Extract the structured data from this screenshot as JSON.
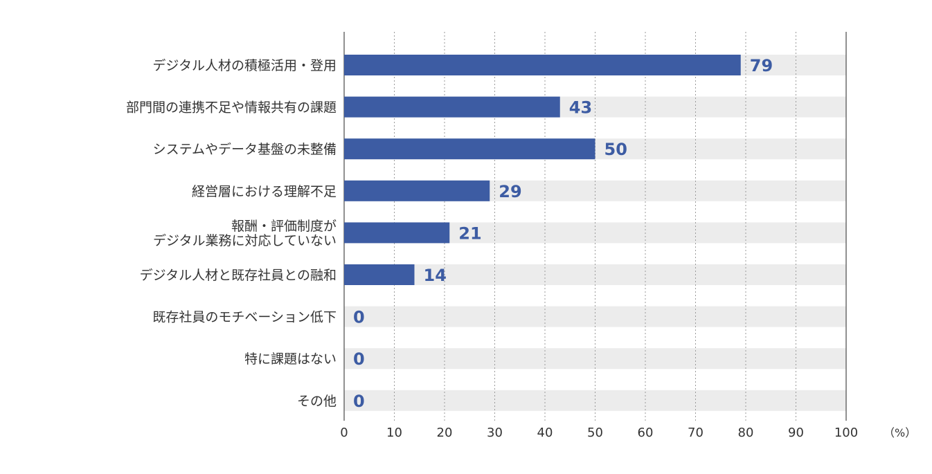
{
  "chart_data": {
    "type": "bar",
    "orientation": "horizontal",
    "categories": [
      [
        "デジタル人材の積極活用・登用"
      ],
      [
        "部門間の連携不足や情報共有の課題"
      ],
      [
        "システムやデータ基盤の未整備"
      ],
      [
        "経営層における理解不足"
      ],
      [
        "報酬・評価制度が",
        "デジタル業務に対応していない"
      ],
      [
        "デジタル人材と既存社員との融和"
      ],
      [
        "既存社員のモチベーション低下"
      ],
      [
        "特に課題はない"
      ],
      [
        "その他"
      ]
    ],
    "values": [
      79,
      43,
      50,
      29,
      21,
      14,
      0,
      0,
      0
    ],
    "data_labels": [
      "79",
      "43",
      "50",
      "29",
      "21",
      "14",
      "0",
      "0",
      "0"
    ],
    "xlim": [
      0,
      100
    ],
    "x_ticks": [
      0,
      10,
      20,
      30,
      40,
      50,
      60,
      70,
      80,
      90,
      100
    ],
    "x_tick_labels": [
      "0",
      "10",
      "20",
      "30",
      "40",
      "50",
      "60",
      "70",
      "80",
      "90",
      "100"
    ],
    "unit_label": "（%）",
    "gridlines": "vertical dotted",
    "colors": {
      "bar": "#3d5ca3",
      "track": "#ececec",
      "value_text": "#3d5ca3",
      "grid": "#9a9a9a",
      "axis": "#555555"
    }
  }
}
